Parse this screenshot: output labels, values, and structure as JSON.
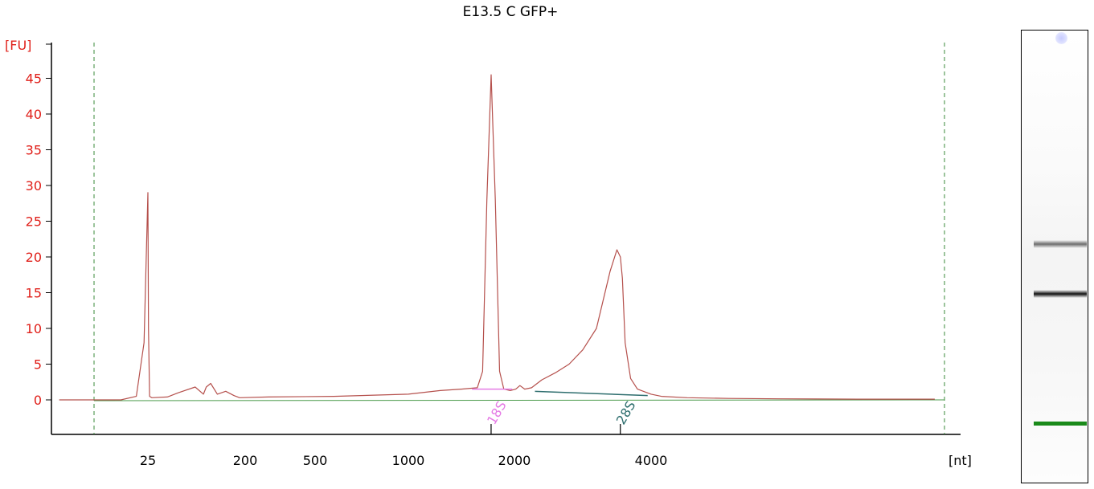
{
  "chart_data": {
    "type": "line",
    "title": "E13.5 C GFP+",
    "ylabel": "[FU]",
    "xlabel": "[nt]",
    "ylim": [
      -5,
      50
    ],
    "y_ticks": [
      0,
      5,
      10,
      15,
      20,
      25,
      30,
      35,
      40,
      45
    ],
    "x_ticks": [
      "25",
      "200",
      "500",
      "1000",
      "2000",
      "4000"
    ],
    "x_tick_values": [
      25,
      200,
      500,
      1000,
      2000,
      4000
    ],
    "x_axis_scale": "ladder (non-linear)",
    "grid": false,
    "series": [
      {
        "color": "#b5504c",
        "x": [
          2,
          18,
          22,
          24,
          25,
          26,
          28,
          32,
          60,
          80,
          110,
          125,
          130,
          138,
          150,
          165,
          180,
          190,
          300,
          600,
          1000,
          1300,
          1500,
          1650,
          1700,
          1740,
          1780,
          1820,
          1860,
          1900,
          1960,
          2020,
          2080,
          2150,
          2250,
          2400,
          2600,
          2800,
          3000,
          3200,
          3400,
          3500,
          3550,
          3580,
          3620,
          3700,
          3800,
          4000,
          4200,
          4700,
          5500,
          6500,
          8000,
          9500
        ],
        "y": [
          0,
          0,
          0.5,
          8,
          29,
          10,
          0.5,
          0.3,
          0.4,
          1,
          1.8,
          0.8,
          1.8,
          2.3,
          0.8,
          1.2,
          0.6,
          0.3,
          0.4,
          0.5,
          0.8,
          1.3,
          1.5,
          1.7,
          4,
          28,
          45.5,
          28,
          4,
          1.5,
          1.3,
          1.5,
          2,
          1.5,
          1.7,
          2.8,
          3.8,
          5,
          7,
          10,
          18,
          21,
          20,
          17,
          8,
          3,
          1.5,
          0.8,
          0.5,
          0.3,
          0.2,
          0.15,
          0.1,
          0.1
        ]
      }
    ],
    "peak_markers": [
      {
        "label": "18S",
        "color": "#e57be5",
        "x": 1780
      },
      {
        "label": "28S",
        "color": "#2e6e6e",
        "x": 3550
      }
    ]
  },
  "gel": {
    "bands": [
      {
        "position": 0.47,
        "color": "#555555",
        "strength": 0.85
      },
      {
        "position": 0.58,
        "color": "#111111",
        "strength": 1.0
      },
      {
        "position": 0.865,
        "color": "#1a8a1a",
        "strength": 1.0
      }
    ]
  }
}
